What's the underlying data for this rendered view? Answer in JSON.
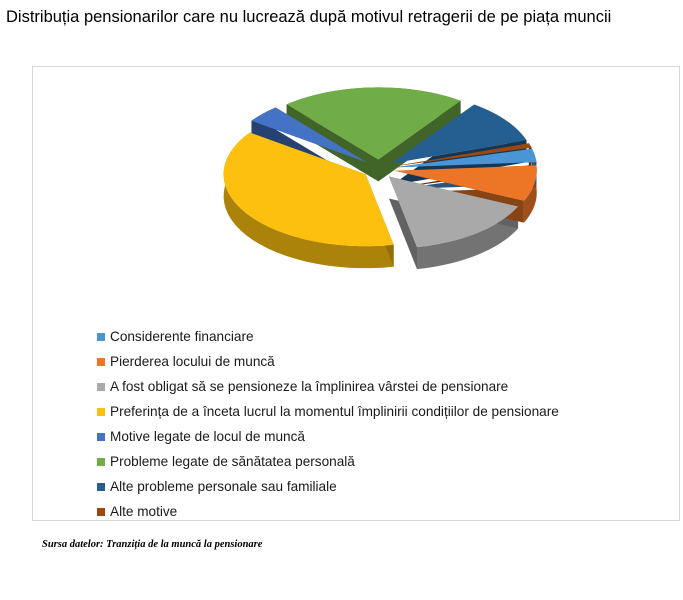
{
  "title": "Distribuția pensionarilor care nu lucrează după motivul retragerii de  pe piața muncii",
  "source": "Sursa datelor:  Tranziția de la muncă la pensionare",
  "chart_data": {
    "type": "pie",
    "title": "",
    "style": "3d-exploded",
    "slices": [
      {
        "label": "Considerente financiare",
        "value": 3,
        "color": "#4a95d6"
      },
      {
        "label": "Pierderea locului de muncă",
        "value": 8,
        "color": "#ec7626"
      },
      {
        "label": "A fost obligat să se pensioneze la împlinirea vârstei de pensionare",
        "value": 15,
        "color": "#a9a9a9"
      },
      {
        "label": "Preferința de a înceta lucrul la momentul împlinirii condițiilor de pensionare",
        "value": 38,
        "color": "#fdc00f"
      },
      {
        "label": "Motive legate de locul de muncă",
        "value": 4,
        "color": "#4472c4"
      },
      {
        "label": "Probleme legate de sănătatea personală",
        "value": 21,
        "color": "#70ad47"
      },
      {
        "label": "Alte probleme personale sau familiale",
        "value": 10,
        "color": "#255e91"
      },
      {
        "label": "Alte motive",
        "value": 1,
        "color": "#9e480e"
      }
    ],
    "legend_position": "bottom-left"
  }
}
